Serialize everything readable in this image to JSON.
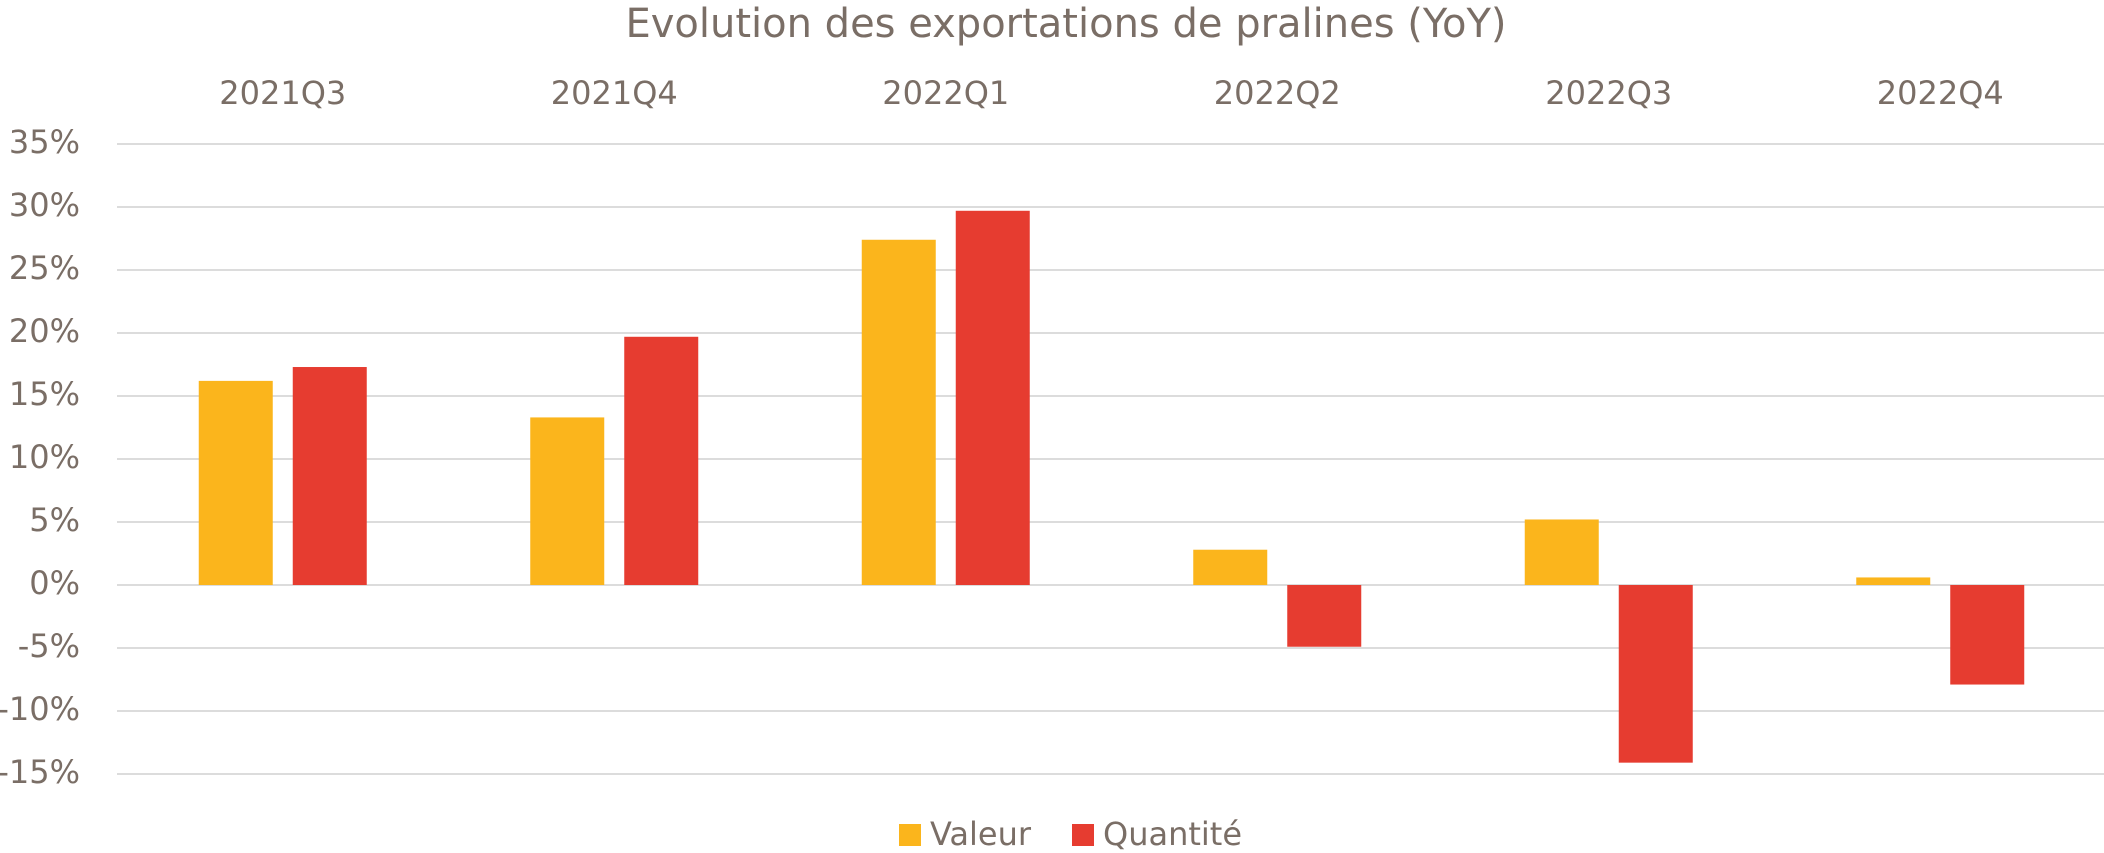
{
  "chart_data": {
    "type": "bar",
    "title": "Evolution des exportations de pralines (YoY)",
    "categories": [
      "2021Q3",
      "2021Q4",
      "2022Q1",
      "2022Q2",
      "2022Q3",
      "2022Q4"
    ],
    "series": [
      {
        "name": "Valeur",
        "color": "#fbb51c",
        "values": [
          16.2,
          13.3,
          27.4,
          2.8,
          5.2,
          0.6
        ]
      },
      {
        "name": "Quantité",
        "color": "#e63c30",
        "values": [
          17.3,
          19.7,
          29.7,
          -4.9,
          -14.1,
          -7.9
        ]
      }
    ],
    "ylim": [
      -15,
      35
    ],
    "yticks": [
      {
        "value": -15,
        "label": "-15%"
      },
      {
        "value": -10,
        "label": "-10%"
      },
      {
        "value": -5,
        "label": "-5%"
      },
      {
        "value": 0,
        "label": "0%"
      },
      {
        "value": 5,
        "label": "5%"
      },
      {
        "value": 10,
        "label": "10%"
      },
      {
        "value": 15,
        "label": "15%"
      },
      {
        "value": 20,
        "label": "20%"
      },
      {
        "value": 25,
        "label": "25%"
      },
      {
        "value": 30,
        "label": "30%"
      },
      {
        "value": 35,
        "label": "35%"
      }
    ],
    "grid": true,
    "legend": "bottom"
  }
}
